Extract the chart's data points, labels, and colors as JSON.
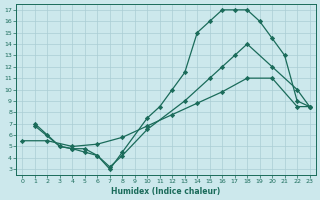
{
  "xlabel": "Humidex (Indice chaleur)",
  "bg_color": "#cce8ec",
  "grid_color": "#aacdd4",
  "line_color": "#1a6b5a",
  "xlim": [
    -0.5,
    23.5
  ],
  "ylim": [
    2.5,
    17.5
  ],
  "xticks": [
    0,
    1,
    2,
    3,
    4,
    5,
    6,
    7,
    8,
    9,
    10,
    11,
    12,
    13,
    14,
    15,
    16,
    17,
    18,
    19,
    20,
    21,
    22,
    23
  ],
  "yticks": [
    3,
    4,
    5,
    6,
    7,
    8,
    9,
    10,
    11,
    12,
    13,
    14,
    15,
    16,
    17
  ],
  "line1_x": [
    1,
    2,
    3,
    4,
    5,
    6,
    7,
    8,
    10,
    11,
    12,
    13,
    14,
    15,
    16,
    17,
    18,
    19,
    20,
    21,
    22,
    23
  ],
  "line1_y": [
    7,
    6,
    5,
    4.8,
    4.5,
    4.2,
    3.0,
    4.5,
    7.5,
    8.5,
    10,
    11.5,
    15,
    16,
    17,
    17,
    17,
    16,
    14.5,
    13,
    9,
    8.5
  ],
  "line2_x": [
    1,
    3,
    4,
    5,
    6,
    7,
    8,
    10,
    13,
    15,
    16,
    17,
    18,
    20,
    22,
    23
  ],
  "line2_y": [
    6.8,
    5,
    4.8,
    4.8,
    4.2,
    3.2,
    4.2,
    6.5,
    9,
    11,
    12,
    13,
    14,
    12,
    10,
    8.5
  ],
  "line3_x": [
    0,
    2,
    4,
    6,
    8,
    10,
    12,
    14,
    16,
    18,
    20,
    22,
    23
  ],
  "line3_y": [
    5.5,
    5.5,
    5,
    5.2,
    5.8,
    6.8,
    7.8,
    8.8,
    9.8,
    11,
    11,
    8.5,
    8.5
  ]
}
